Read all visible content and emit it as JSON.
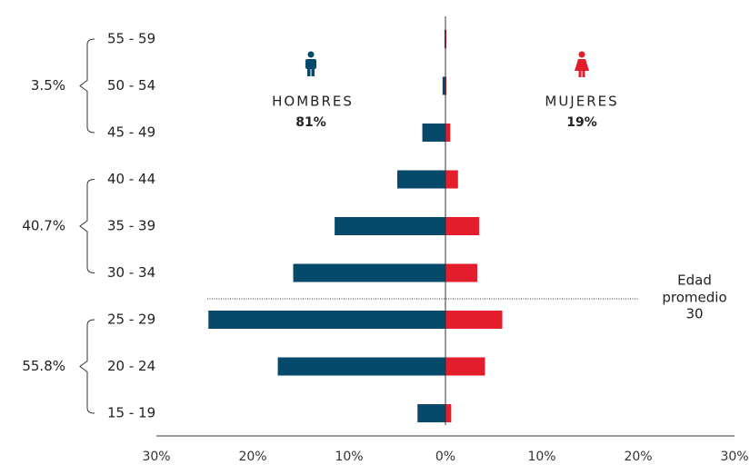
{
  "chart_data": {
    "type": "pyramid",
    "categories": [
      "55 - 59",
      "50 - 54",
      "45 - 49",
      "40 - 44",
      "35 - 39",
      "30 - 34",
      "25 - 29",
      "20 - 24",
      "15 - 19"
    ],
    "series": [
      {
        "name": "HOMBRES",
        "share_label": "81%",
        "color": "#064a6b",
        "values": [
          -0.1,
          -0.3,
          -2.4,
          -5.0,
          -11.5,
          -15.8,
          -24.6,
          -17.4,
          -2.9
        ]
      },
      {
        "name": "MUJERES",
        "share_label": "19%",
        "color": "#e31d2b",
        "values": [
          0.05,
          0.1,
          0.5,
          1.3,
          3.5,
          3.3,
          5.9,
          4.1,
          0.6
        ]
      }
    ],
    "groups": [
      "3.5%",
      "40.7%",
      "55.8%"
    ],
    "annotation": [
      "Edad",
      "promedio",
      "30"
    ],
    "xlim": [
      -30,
      30
    ],
    "xticks": [
      {
        "value": -30,
        "label": "30%"
      },
      {
        "value": -20,
        "label": "20%"
      },
      {
        "value": -10,
        "label": "10%"
      },
      {
        "value": 0,
        "label": "0%"
      },
      {
        "value": 10,
        "label": "10%"
      },
      {
        "value": 20,
        "label": "20%"
      },
      {
        "value": 30,
        "label": "30%"
      }
    ]
  }
}
